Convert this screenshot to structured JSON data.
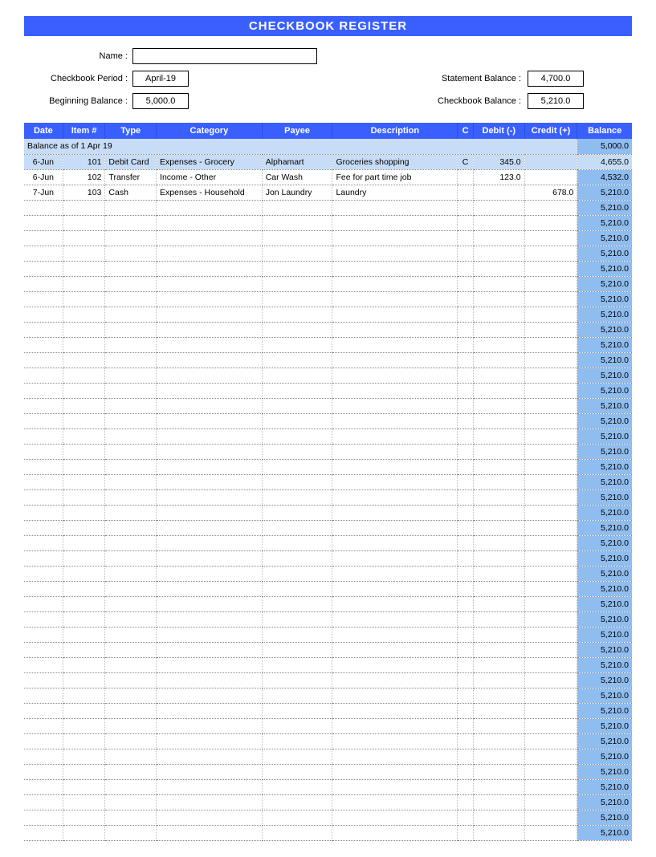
{
  "title": "CHECKBOOK REGISTER",
  "colors": {
    "title_bg": "#3a5fff",
    "title_fg": "#ffffff",
    "header_bg": "#3a5fff",
    "opening_bg": "#c7dcf7",
    "balance_col_bg": "#8fbdf0",
    "row_highlight_bg": "#c7dcf7",
    "grid_dotted": "#888888"
  },
  "form": {
    "name_label": "Name :",
    "name_value": "",
    "period_label": "Checkbook Period :",
    "period_value": "April-19",
    "beginning_label": "Beginning Balance :",
    "beginning_value": "5,000.0",
    "statement_label": "Statement Balance :",
    "statement_value": "4,700.0",
    "checkbook_label": "Checkbook Balance :",
    "checkbook_value": "5,210.0"
  },
  "table": {
    "columns": [
      "Date",
      "Item #",
      "Type",
      "Category",
      "Payee",
      "Description",
      "C",
      "Debit  (-)",
      "Credit (+)",
      "Balance"
    ],
    "opening_label": "Balance as of  1 Apr 19",
    "opening_balance": "5,000.0",
    "rows": [
      {
        "date": "6-Jun",
        "item": "101",
        "type": "Debit Card",
        "category": "Expenses - Grocery",
        "payee": "Alphamart",
        "desc": "Groceries shopping",
        "c": "C",
        "debit": "345.0",
        "credit": "",
        "balance": "4,655.0",
        "highlight": true
      },
      {
        "date": "6-Jun",
        "item": "102",
        "type": "Transfer",
        "category": "Income - Other",
        "payee": "Car Wash",
        "desc": "Fee for part time job",
        "c": "",
        "debit": "123.0",
        "credit": "",
        "balance": "4,532.0",
        "highlight": false
      },
      {
        "date": "7-Jun",
        "item": "103",
        "type": "Cash",
        "category": "Expenses - Household",
        "payee": "Jon Laundry",
        "desc": "Laundry",
        "c": "",
        "debit": "",
        "credit": "678.0",
        "balance": "5,210.0",
        "highlight": false
      }
    ],
    "empty_row_balance": "5,210.0",
    "empty_row_count": 42
  }
}
